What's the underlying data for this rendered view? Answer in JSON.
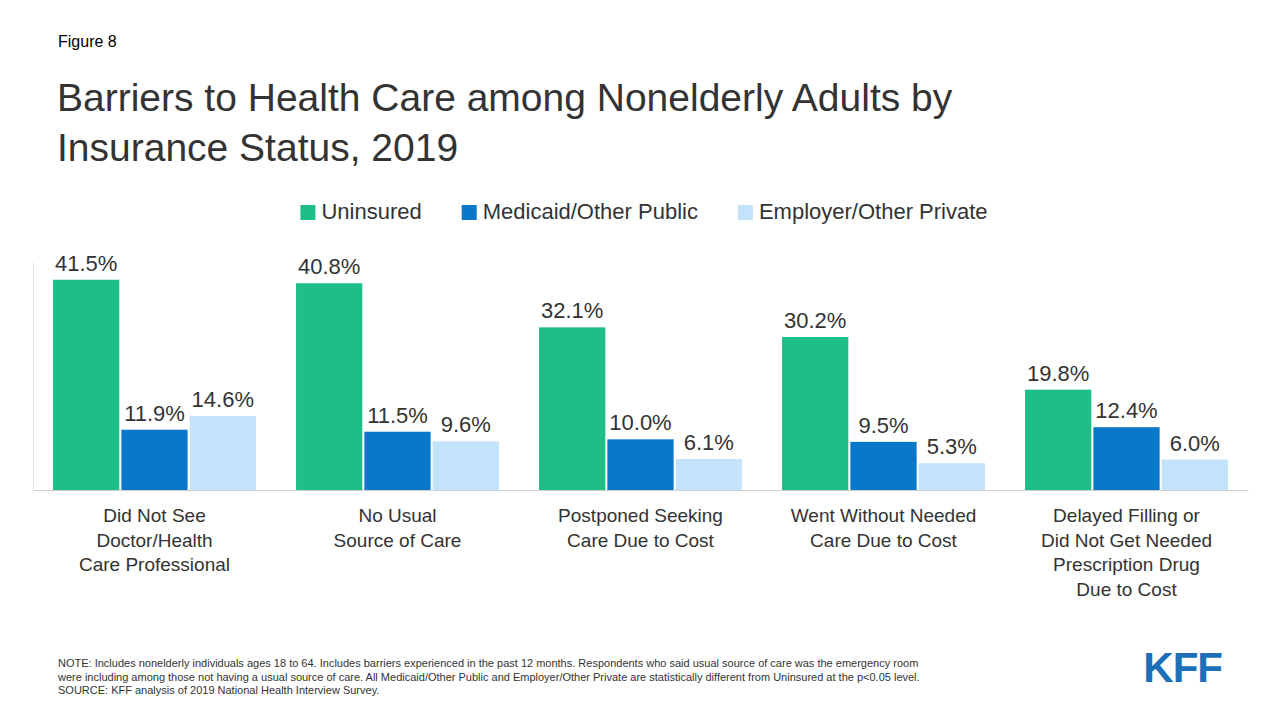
{
  "chart_data": {
    "type": "bar",
    "figure_label": "Figure 8",
    "title": "Barriers to Health Care among Nonelderly Adults by\nInsurance Status, 2019",
    "categories": [
      "Did Not See\nDoctor/Health\nCare Professional",
      "No Usual\nSource of Care",
      "Postponed Seeking\nCare Due to Cost",
      "Went Without Needed\nCare Due to Cost",
      "Delayed Filling or\nDid Not Get Needed\nPrescription Drug\nDue to Cost"
    ],
    "series": [
      {
        "name": "Uninsured",
        "color": "#1dbf86",
        "values": [
          41.5,
          40.8,
          32.1,
          30.2,
          19.8
        ],
        "value_labels": [
          "41.5%",
          "40.8%",
          "32.1%",
          "30.2%",
          "19.8%"
        ]
      },
      {
        "name": "Medicaid/Other Public",
        "color": "#0a78c8",
        "values": [
          11.9,
          11.5,
          10.0,
          9.5,
          12.4
        ],
        "value_labels": [
          "11.9%",
          "11.5%",
          "10.0%",
          "9.5%",
          "12.4%"
        ]
      },
      {
        "name": "Employer/Other Private",
        "color": "#c2e3fa",
        "values": [
          14.6,
          9.6,
          6.1,
          5.3,
          6.0
        ],
        "value_labels": [
          "14.6%",
          "9.6%",
          "6.1%",
          "5.3%",
          "6.0%"
        ]
      }
    ],
    "ylim": [
      0,
      45
    ],
    "tick_labels": "x",
    "data_labels": true,
    "legend": "top",
    "grid": false,
    "note": "NOTE: Includes nonelderly individuals ages 18 to 64. Includes barriers experienced in the past 12 months. Respondents who said usual source of care was the emergency room\nwere including among those not having a usual source of care. All Medicaid/Other Public and Employer/Other Private are statistically different from Uninsured at the p<0.05 level.",
    "source": "SOURCE: KFF analysis of 2019 National Health Interview Survey.",
    "logo": "KFF"
  }
}
